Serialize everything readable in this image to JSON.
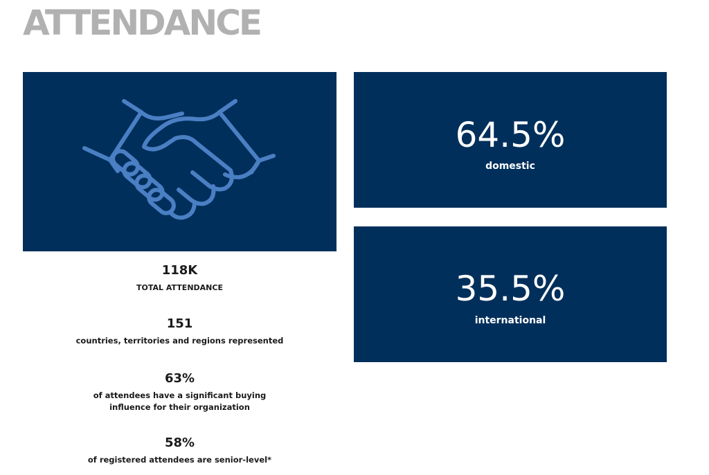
{
  "page": {
    "title": "ATTENDANCE"
  },
  "colors": {
    "panel_bg": "#002f5b",
    "icon_stroke": "#4a7fc4",
    "title_gray": "#b1b1b1"
  },
  "hero": {
    "icon": "handshake-icon"
  },
  "stats": [
    {
      "value": "118K",
      "label": "TOTAL ATTENDANCE"
    },
    {
      "value": "151",
      "label": "countries, territories and regions represented"
    },
    {
      "value": "63%",
      "label": "of attendees have a significant buying influence for their organization"
    },
    {
      "value": "58%",
      "label": "of registered attendees are senior-level*"
    }
  ],
  "breakdown": [
    {
      "value": "64.5%",
      "label": "domestic"
    },
    {
      "value": "35.5%",
      "label": "international"
    }
  ]
}
